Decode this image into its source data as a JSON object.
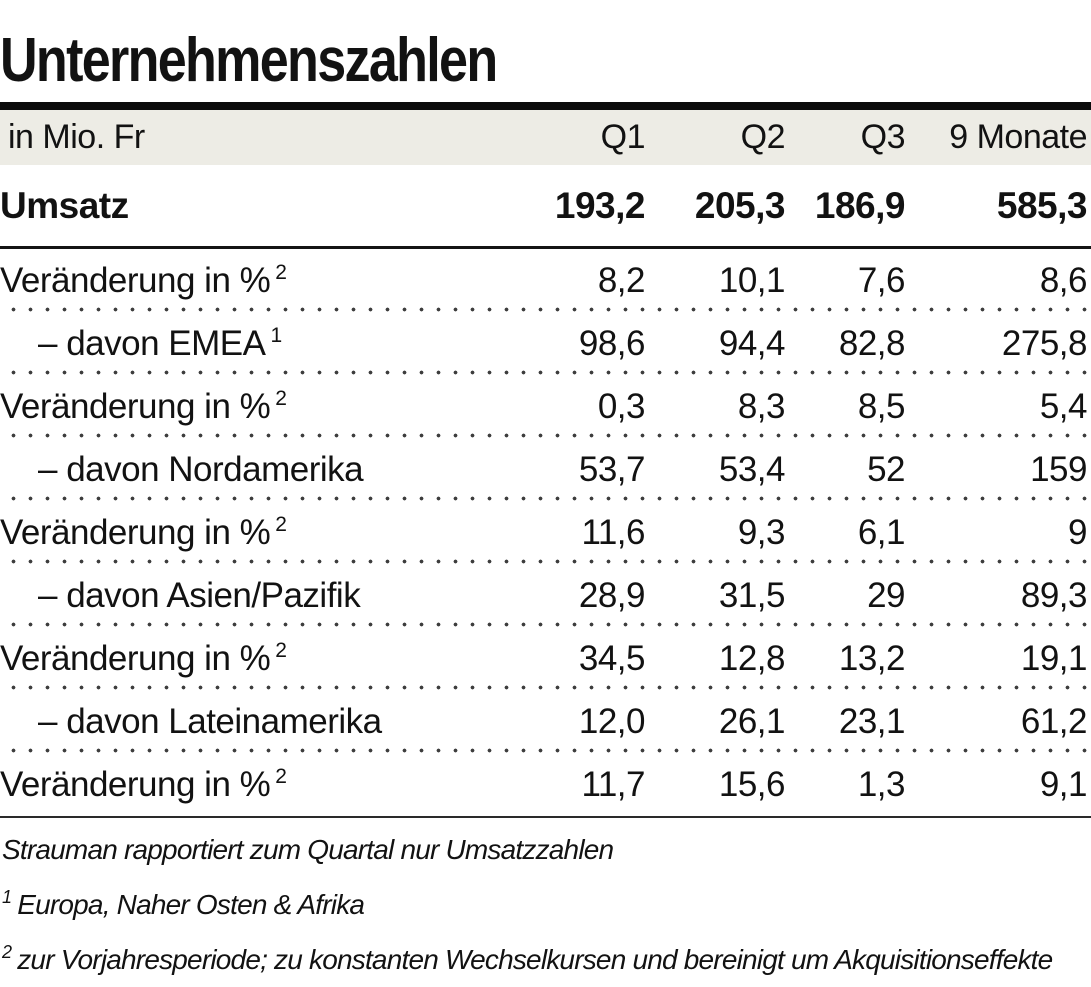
{
  "title": "Unternehmenszahlen",
  "chart_data": {
    "type": "table",
    "title": "Unternehmenszahlen",
    "unit_label": "in Mio. Fr",
    "columns": [
      "Q1",
      "Q2",
      "Q3",
      "9 Monate"
    ],
    "rows": [
      {
        "label": "Umsatz",
        "sup": "",
        "style": "total",
        "values": [
          "193,2",
          "205,3",
          "186,9",
          "585,3"
        ]
      },
      {
        "label": "Veränderung in %",
        "sup": "2",
        "style": "change",
        "values": [
          "8,2",
          "10,1",
          "7,6",
          "8,6"
        ]
      },
      {
        "label": "– davon EMEA",
        "sup": "1",
        "style": "indent",
        "values": [
          "98,6",
          "94,4",
          "82,8",
          "275,8"
        ]
      },
      {
        "label": "Veränderung in %",
        "sup": "2",
        "style": "change",
        "values": [
          "0,3",
          "8,3",
          "8,5",
          "5,4"
        ]
      },
      {
        "label": "– davon Nordamerika",
        "sup": "",
        "style": "indent",
        "values": [
          "53,7",
          "53,4",
          "52",
          "159"
        ]
      },
      {
        "label": "Veränderung in %",
        "sup": "2",
        "style": "change",
        "values": [
          "11,6",
          "9,3",
          "6,1",
          "9"
        ]
      },
      {
        "label": "– davon Asien/Pazifik",
        "sup": "",
        "style": "indent",
        "values": [
          "28,9",
          "31,5",
          "29",
          "89,3"
        ]
      },
      {
        "label": "Veränderung in %",
        "sup": "2",
        "style": "change",
        "values": [
          "34,5",
          "12,8",
          "13,2",
          "19,1"
        ]
      },
      {
        "label": "– davon Lateinamerika",
        "sup": "",
        "style": "indent",
        "values": [
          "12,0",
          "26,1",
          "23,1",
          "61,2"
        ]
      },
      {
        "label": "Veränderung in %",
        "sup": "2",
        "style": "change",
        "values": [
          "11,7",
          "15,6",
          "1,3",
          "9,1"
        ]
      }
    ]
  },
  "footnotes": [
    {
      "marker": "",
      "text": "Strauman rapportiert zum Quartal nur Umsatzzahlen"
    },
    {
      "marker": "1",
      "text": "Europa, Naher Osten & Afrika"
    },
    {
      "marker": "2",
      "text": "zur Vorjahresperiode; zu konstanten Wechselkursen und bereinigt um Akquisitionseffekte"
    }
  ]
}
